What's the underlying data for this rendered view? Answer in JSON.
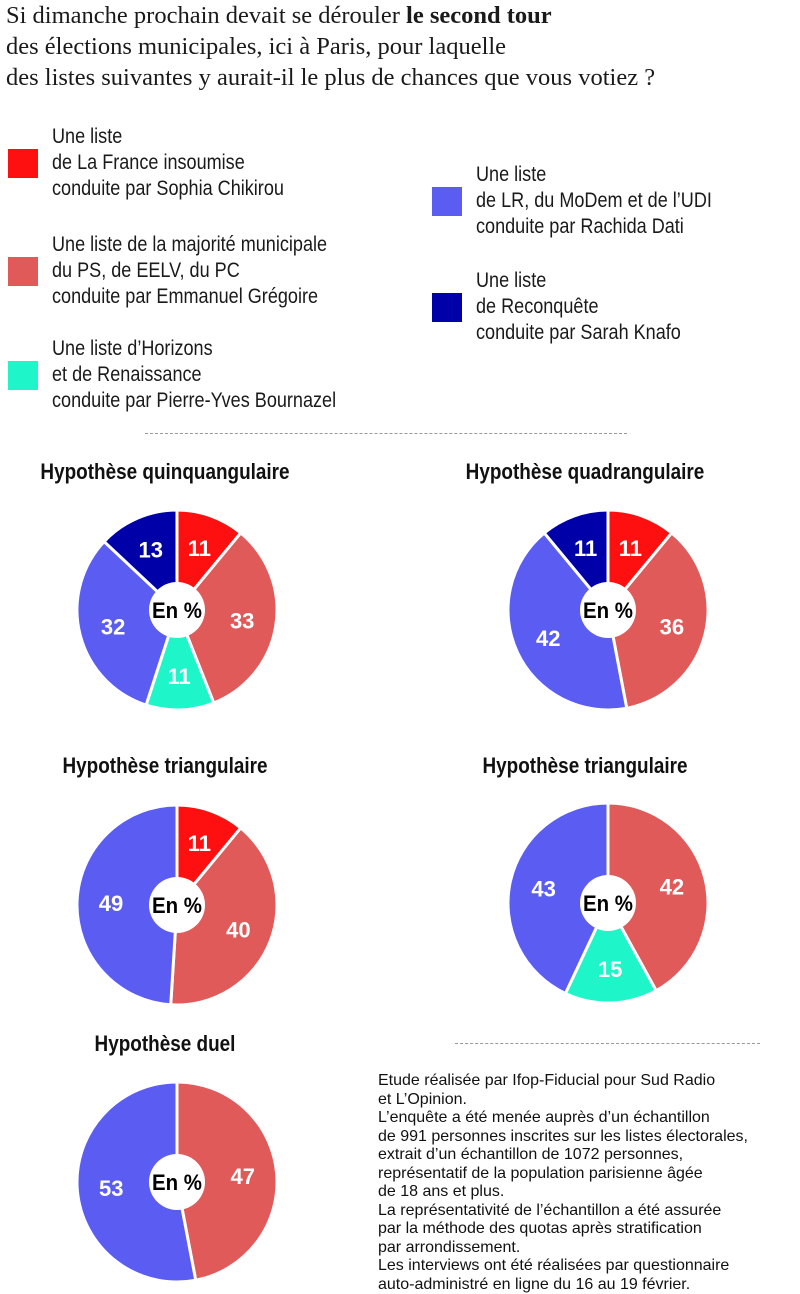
{
  "question": {
    "line1_normal": "Si dimanche prochain devait se dérouler ",
    "line1_bold": "le second tour",
    "line2": "des élections municipales, ici à Paris, pour laquelle",
    "line3": "des listes suivantes y aurait-il le plus de chances que vous votiez ?"
  },
  "legend": [
    {
      "key": "lfi",
      "color": "#ff1010",
      "lines": [
        "Une liste",
        "de La France insoumise",
        "conduite par Sophia Chikirou"
      ]
    },
    {
      "key": "ps",
      "color": "#e05a5a",
      "lines": [
        "Une liste de la majorité municipale",
        "du PS, de EELV, du PC",
        "conduite par Emmanuel Grégoire"
      ]
    },
    {
      "key": "horizons",
      "color": "#1ef5c8",
      "lines": [
        "Une liste d’Horizons",
        "et de Renaissance",
        "conduite par Pierre-Yves Bournazel"
      ]
    },
    {
      "key": "lr",
      "color": "#5a5cf2",
      "lines": [
        "Une liste",
        "de LR, du MoDem et de l’UDI",
        "conduite par Rachida Dati"
      ]
    },
    {
      "key": "reconquete",
      "color": "#0000a8",
      "lines": [
        "Une liste",
        "de Reconquête",
        "conduite par Sarah Knafo"
      ]
    }
  ],
  "center_label": "En %",
  "chart_data": [
    {
      "type": "pie",
      "title": "Hypothèse quinquangulaire",
      "unit": "%",
      "slices": [
        {
          "key": "lfi",
          "value": 11
        },
        {
          "key": "ps",
          "value": 33
        },
        {
          "key": "horizons",
          "value": 11
        },
        {
          "key": "lr",
          "value": 32
        },
        {
          "key": "reconquete",
          "value": 13
        }
      ]
    },
    {
      "type": "pie",
      "title": "Hypothèse quadrangulaire",
      "unit": "%",
      "slices": [
        {
          "key": "lfi",
          "value": 11
        },
        {
          "key": "ps",
          "value": 36
        },
        {
          "key": "lr",
          "value": 42
        },
        {
          "key": "reconquete",
          "value": 11
        }
      ]
    },
    {
      "type": "pie",
      "title": "Hypothèse triangulaire",
      "unit": "%",
      "slices": [
        {
          "key": "lfi",
          "value": 11
        },
        {
          "key": "ps",
          "value": 40
        },
        {
          "key": "lr",
          "value": 49
        }
      ]
    },
    {
      "type": "pie",
      "title": "Hypothèse triangulaire",
      "unit": "%",
      "slices": [
        {
          "key": "ps",
          "value": 42
        },
        {
          "key": "horizons",
          "value": 15
        },
        {
          "key": "lr",
          "value": 43
        }
      ]
    },
    {
      "type": "pie",
      "title": "Hypothèse duel",
      "unit": "%",
      "slices": [
        {
          "key": "ps",
          "value": 47
        },
        {
          "key": "lr",
          "value": 53
        }
      ]
    }
  ],
  "methodology": [
    "Etude réalisée par Ifop-Fiducial pour Sud Radio",
    "et L’Opinion.",
    "L’enquête a été menée auprès d’un échantillon",
    "de 991 personnes inscrites sur les listes électorales,",
    "extrait d’un échantillon de 1072 personnes,",
    "représentatif de la population parisienne âgée",
    "de 18 ans et plus.",
    "La représentativité de l’échantillon a été assurée",
    "par la méthode des quotas après stratification",
    "par arrondissement.",
    "Les interviews ont été réalisées par questionnaire",
    "auto-administré en ligne du 16 au 19 février."
  ]
}
